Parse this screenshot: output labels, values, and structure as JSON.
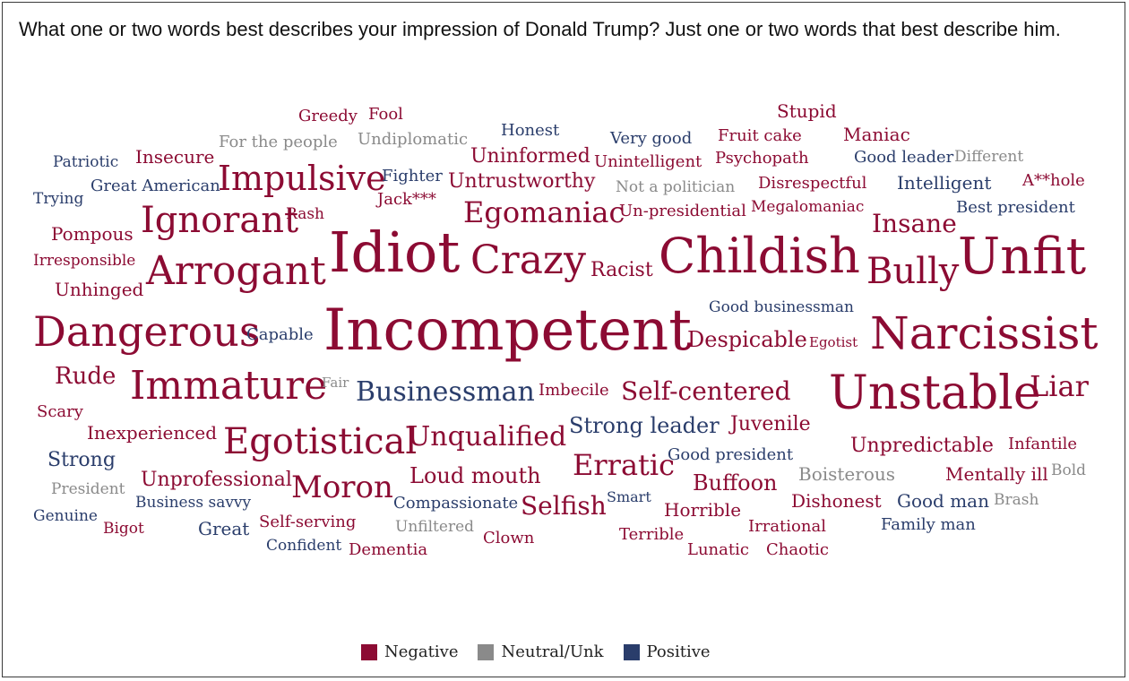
{
  "question": "What one or two words best describes your impression of Donald Trump? Just one or two words that best describe him.",
  "colors": {
    "negative": "#8c0b33",
    "neutral": "#8a8a8a",
    "positive": "#2a3d6b"
  },
  "chart_data": {
    "type": "word-cloud",
    "title": "",
    "legend": {
      "placement": "bottom-center",
      "entries": [
        {
          "key": "negative",
          "label": "Negative"
        },
        {
          "key": "neutral",
          "label": "Neutral/Unk"
        },
        {
          "key": "positive",
          "label": "Positive"
        }
      ]
    },
    "words": [
      {
        "text": "Incompetent",
        "category": "negative",
        "size": 64
      },
      {
        "text": "Idiot",
        "category": "negative",
        "size": 62
      },
      {
        "text": "Unfit",
        "category": "negative",
        "size": 56
      },
      {
        "text": "Childish",
        "category": "negative",
        "size": 54
      },
      {
        "text": "Unstable",
        "category": "negative",
        "size": 52
      },
      {
        "text": "Narcissist",
        "category": "negative",
        "size": 50
      },
      {
        "text": "Dangerous",
        "category": "negative",
        "size": 46
      },
      {
        "text": "Arrogant",
        "category": "negative",
        "size": 44
      },
      {
        "text": "Immature",
        "category": "negative",
        "size": 44
      },
      {
        "text": "Crazy",
        "category": "negative",
        "size": 44
      },
      {
        "text": "Egotistical",
        "category": "negative",
        "size": 40
      },
      {
        "text": "Ignorant",
        "category": "negative",
        "size": 40
      },
      {
        "text": "Bully",
        "category": "negative",
        "size": 40
      },
      {
        "text": "Impulsive",
        "category": "negative",
        "size": 38
      },
      {
        "text": "Moron",
        "category": "negative",
        "size": 34
      },
      {
        "text": "Egomaniac",
        "category": "negative",
        "size": 32
      },
      {
        "text": "Erratic",
        "category": "negative",
        "size": 32
      },
      {
        "text": "Liar",
        "category": "negative",
        "size": 32
      },
      {
        "text": "Unqualified",
        "category": "negative",
        "size": 30
      },
      {
        "text": "Businessman",
        "category": "positive",
        "size": 30
      },
      {
        "text": "Insane",
        "category": "negative",
        "size": 28
      },
      {
        "text": "Self-centered",
        "category": "negative",
        "size": 28
      },
      {
        "text": "Selfish",
        "category": "negative",
        "size": 28
      },
      {
        "text": "Rude",
        "category": "negative",
        "size": 26
      },
      {
        "text": "Loud mouth",
        "category": "negative",
        "size": 24
      },
      {
        "text": "Buffoon",
        "category": "negative",
        "size": 24
      },
      {
        "text": "Despicable",
        "category": "negative",
        "size": 24
      },
      {
        "text": "Strong leader",
        "category": "positive",
        "size": 24
      },
      {
        "text": "Untrustworthy",
        "category": "negative",
        "size": 22
      },
      {
        "text": "Strong",
        "category": "positive",
        "size": 22
      },
      {
        "text": "Juvenile",
        "category": "negative",
        "size": 22
      },
      {
        "text": "Racist",
        "category": "negative",
        "size": 22
      },
      {
        "text": "Unprofessional",
        "category": "negative",
        "size": 22
      },
      {
        "text": "Uninformed",
        "category": "negative",
        "size": 22
      },
      {
        "text": "Unpredictable",
        "category": "negative",
        "size": 22
      },
      {
        "text": "Intelligent",
        "category": "positive",
        "size": 20
      },
      {
        "text": "Inexperienced",
        "category": "negative",
        "size": 20
      },
      {
        "text": "Pompous",
        "category": "negative",
        "size": 20
      },
      {
        "text": "Unhinged",
        "category": "negative",
        "size": 20
      },
      {
        "text": "Mentally ill",
        "category": "negative",
        "size": 20
      },
      {
        "text": "Dishonest",
        "category": "negative",
        "size": 20
      },
      {
        "text": "Good man",
        "category": "positive",
        "size": 20
      },
      {
        "text": "Stupid",
        "category": "negative",
        "size": 20
      },
      {
        "text": "Maniac",
        "category": "negative",
        "size": 20
      },
      {
        "text": "Great",
        "category": "positive",
        "size": 20
      },
      {
        "text": "Boisterous",
        "category": "neutral",
        "size": 20
      },
      {
        "text": "Horrible",
        "category": "negative",
        "size": 20
      },
      {
        "text": "Insecure",
        "category": "negative",
        "size": 20
      },
      {
        "text": "Un-presidential",
        "category": "negative",
        "size": 18
      },
      {
        "text": "Infantile",
        "category": "negative",
        "size": 18
      },
      {
        "text": "Very good",
        "category": "positive",
        "size": 18
      },
      {
        "text": "Fruit cake",
        "category": "negative",
        "size": 18
      },
      {
        "text": "Psychopath",
        "category": "negative",
        "size": 18
      },
      {
        "text": "Disrespectful",
        "category": "negative",
        "size": 18
      },
      {
        "text": "Clown",
        "category": "negative",
        "size": 18
      },
      {
        "text": "Terrible",
        "category": "negative",
        "size": 18
      },
      {
        "text": "Greedy",
        "category": "negative",
        "size": 18
      },
      {
        "text": "Fool",
        "category": "negative",
        "size": 18
      },
      {
        "text": "Honest",
        "category": "positive",
        "size": 18
      },
      {
        "text": "Unintelligent",
        "category": "negative",
        "size": 18
      },
      {
        "text": "Good president",
        "category": "positive",
        "size": 18
      },
      {
        "text": "Self-serving",
        "category": "negative",
        "size": 18
      },
      {
        "text": "Irrational",
        "category": "negative",
        "size": 18
      },
      {
        "text": "Lunatic",
        "category": "negative",
        "size": 18
      },
      {
        "text": "Chaotic",
        "category": "negative",
        "size": 18
      },
      {
        "text": "Imbecile",
        "category": "negative",
        "size": 18
      },
      {
        "text": "Great American",
        "category": "positive",
        "size": 18
      },
      {
        "text": "Jack***",
        "category": "negative",
        "size": 18
      },
      {
        "text": "Capable",
        "category": "positive",
        "size": 18
      },
      {
        "text": "Compassionate",
        "category": "positive",
        "size": 18
      },
      {
        "text": "Scary",
        "category": "negative",
        "size": 18
      },
      {
        "text": "Good leader",
        "category": "positive",
        "size": 18
      },
      {
        "text": "A**hole",
        "category": "negative",
        "size": 18
      },
      {
        "text": "Dementia",
        "category": "negative",
        "size": 18
      },
      {
        "text": "Family man",
        "category": "positive",
        "size": 18
      },
      {
        "text": "Best president",
        "category": "positive",
        "size": 18
      },
      {
        "text": "Fighter",
        "category": "positive",
        "size": 18
      },
      {
        "text": "For the people",
        "category": "neutral",
        "size": 18
      },
      {
        "text": "Undiplomatic",
        "category": "neutral",
        "size": 18
      },
      {
        "text": "Megalomaniac",
        "category": "negative",
        "size": 17
      },
      {
        "text": "Confident",
        "category": "positive",
        "size": 17
      },
      {
        "text": "Patriotic",
        "category": "positive",
        "size": 17
      },
      {
        "text": "Trying",
        "category": "positive",
        "size": 17
      },
      {
        "text": "Irresponsible",
        "category": "negative",
        "size": 17
      },
      {
        "text": "Bigot",
        "category": "negative",
        "size": 17
      },
      {
        "text": "Genuine",
        "category": "positive",
        "size": 17
      },
      {
        "text": "Business savvy",
        "category": "positive",
        "size": 17
      },
      {
        "text": "Not a politician",
        "category": "neutral",
        "size": 17
      },
      {
        "text": "Good businessman",
        "category": "positive",
        "size": 17
      },
      {
        "text": "Different",
        "category": "neutral",
        "size": 17
      },
      {
        "text": "Unfiltered",
        "category": "neutral",
        "size": 17
      },
      {
        "text": "President",
        "category": "neutral",
        "size": 17
      },
      {
        "text": "Brash",
        "category": "neutral",
        "size": 17
      },
      {
        "text": "Bold",
        "category": "neutral",
        "size": 17
      },
      {
        "text": "Rash",
        "category": "negative",
        "size": 17
      },
      {
        "text": "Smart",
        "category": "positive",
        "size": 16
      },
      {
        "text": "Egotist",
        "category": "negative",
        "size": 15
      },
      {
        "text": "Fair",
        "category": "neutral",
        "size": 15
      }
    ]
  }
}
